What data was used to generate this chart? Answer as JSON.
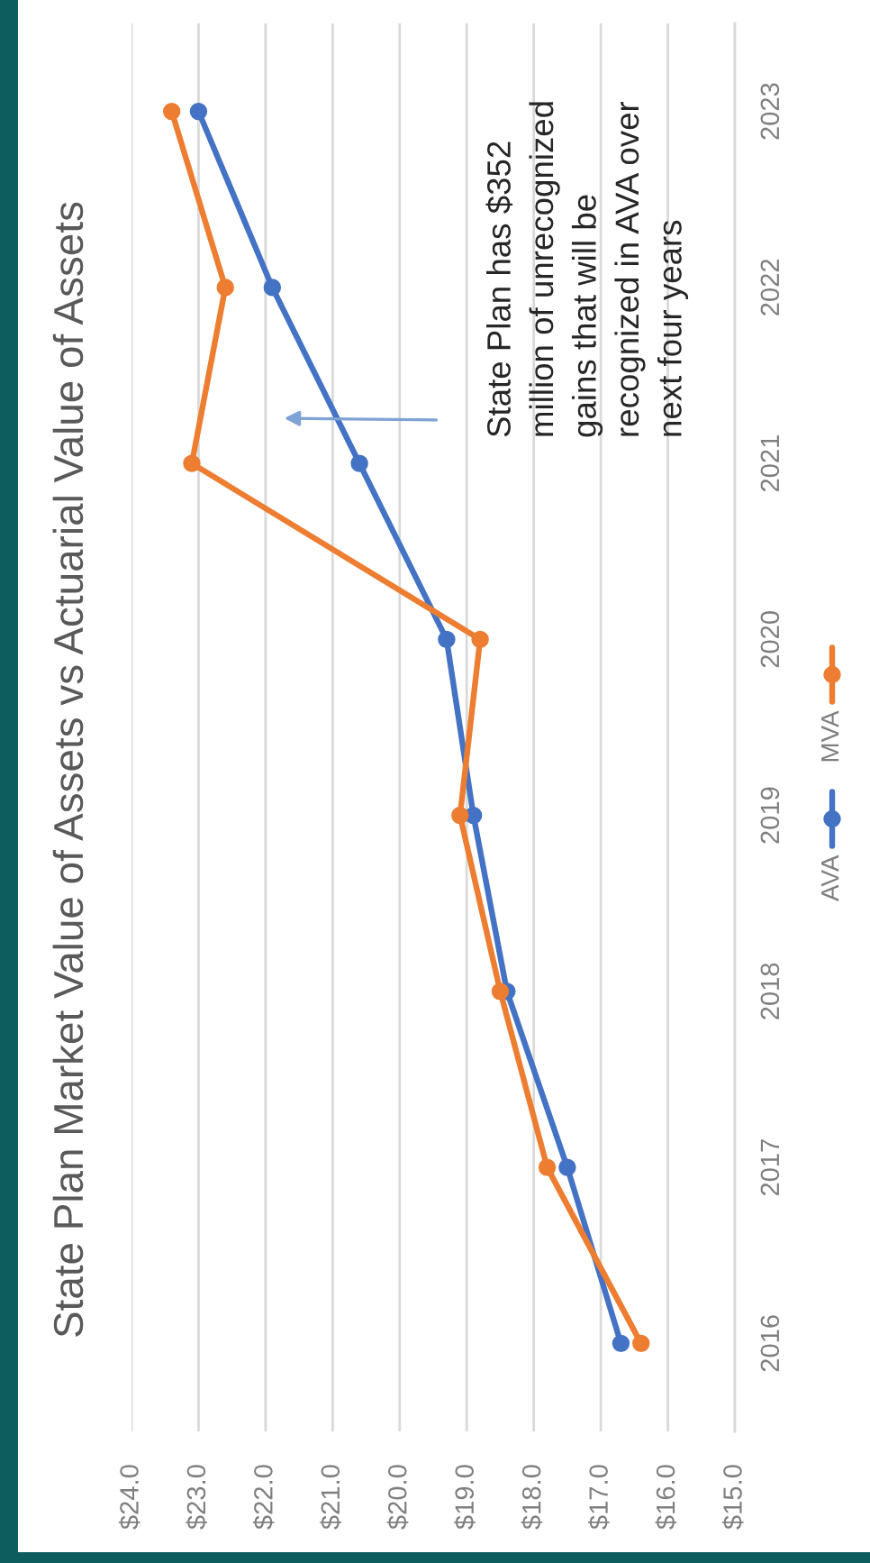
{
  "chart_data": {
    "type": "line",
    "title": "State Plan Market Value of Assets vs Actuarial Value of Assets",
    "series": [
      {
        "name": "AVA",
        "color": "#4472c4",
        "x": [
          16.7,
          17.5,
          18.4,
          18.9,
          19.3,
          20.6,
          21.9,
          23.0
        ],
        "values": [
          2016,
          2017,
          2018,
          2019,
          2020,
          2021,
          2022,
          2023
        ]
      },
      {
        "name": "MVA",
        "color": "#ed7d31",
        "x": [
          16.4,
          17.8,
          18.5,
          19.1,
          18.8,
          23.1,
          22.6,
          23.4
        ],
        "values": [
          2016,
          2017,
          2018,
          2019,
          2020,
          2021,
          2022,
          2023
        ]
      }
    ],
    "xlim": [
      24,
      15
    ],
    "xticks": [
      {
        "value": 24,
        "label": "$24.0"
      },
      {
        "value": 23,
        "label": "$23.0"
      },
      {
        "value": 22,
        "label": "$22.0"
      },
      {
        "value": 21,
        "label": "$21.0"
      },
      {
        "value": 20,
        "label": "$20.0"
      },
      {
        "value": 19,
        "label": "$19.0"
      },
      {
        "value": 18,
        "label": "$18.0"
      },
      {
        "value": 17,
        "label": "$17.0"
      },
      {
        "value": 16,
        "label": "$16.0"
      },
      {
        "value": 15,
        "label": "$15.0"
      }
    ],
    "ylim": [
      2015.5,
      2023.5
    ],
    "yticks": [
      2016,
      2017,
      2018,
      2019,
      2020,
      2021,
      2022,
      2023
    ],
    "grid": "x",
    "legend": "right",
    "marker": "circle",
    "line_style": "solid",
    "annotations": [
      "State Plan has $352\nmillion of unrecognized\ngains that will be\nrecognized in AVA over\nnext four years"
    ]
  }
}
